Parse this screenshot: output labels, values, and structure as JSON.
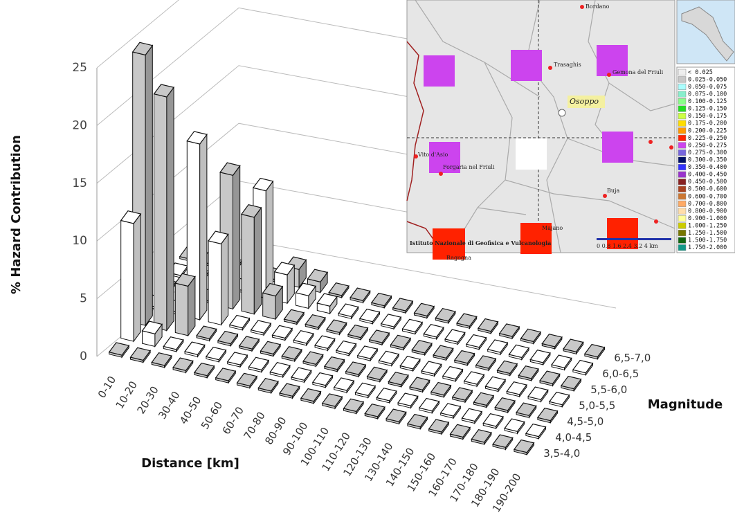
{
  "chart_data": {
    "type": "bar3d",
    "y_label": "% Hazard Contribution",
    "x_label": "Distance [km]",
    "z_label": "Magnitude",
    "categories": [
      "0-10",
      "10-20",
      "20-30",
      "30-40",
      "40-50",
      "50-60",
      "60-70",
      "70-80",
      "80-90",
      "90-100",
      "100-110",
      "110-120",
      "120-130",
      "130-140",
      "140-150",
      "150-160",
      "160-170",
      "170-180",
      "180-190",
      "190-200"
    ],
    "series": [
      {
        "name": "3,5-4,0",
        "color": "#c8c8c8",
        "values": [
          0,
          0,
          0,
          0,
          0,
          0,
          0,
          0,
          0,
          0,
          0,
          0,
          0,
          0,
          0,
          0,
          0,
          0,
          0,
          0
        ]
      },
      {
        "name": "4,0-4,5",
        "color": "#ffffff",
        "values": [
          11,
          1,
          0,
          0,
          0,
          0,
          0,
          0,
          0,
          0,
          0,
          0,
          0,
          0,
          0,
          0,
          0,
          0,
          0,
          0
        ]
      },
      {
        "name": "4,5-5,0",
        "color": "#c8c8c8",
        "values": [
          25.5,
          22,
          4.5,
          0,
          0,
          0,
          0,
          0,
          0,
          0,
          0,
          0,
          0,
          0,
          0,
          0,
          0,
          0,
          0,
          0
        ]
      },
      {
        "name": "5,0-5,5",
        "color": "#ffffff",
        "values": [
          0,
          0,
          16.5,
          7.5,
          0,
          0,
          0,
          0,
          0,
          0,
          0,
          0,
          0,
          0,
          0,
          0,
          0,
          0,
          0,
          0
        ]
      },
      {
        "name": "5,5-6,0",
        "color": "#c8c8c8",
        "values": [
          0,
          0,
          0,
          12.5,
          9,
          2,
          0,
          0,
          0,
          0,
          0,
          0,
          0,
          0,
          0,
          0,
          0,
          0,
          0,
          0
        ]
      },
      {
        "name": "6,0-6,5",
        "color": "#ffffff",
        "values": [
          0,
          0,
          0,
          0,
          10,
          2.5,
          1,
          0.5,
          0,
          0,
          0,
          0,
          0,
          0,
          0,
          0,
          0,
          0,
          0,
          0
        ]
      },
      {
        "name": "6,5-7,0",
        "color": "#c8c8c8",
        "values": [
          0,
          0,
          0,
          0,
          0,
          1.5,
          0.8,
          0,
          0,
          0,
          0,
          0,
          0,
          0,
          0,
          0,
          0,
          0,
          0,
          0
        ]
      }
    ],
    "ylim": [
      0,
      25
    ],
    "yticks": [
      0,
      5,
      10,
      15,
      20,
      25
    ],
    "grid": true
  },
  "map": {
    "places": [
      "Bordano",
      "Trasaghis",
      "Gemona del Friuli",
      "Osoppo",
      "Vito d'Asio",
      "Forgaria nel Friuli",
      "Buja",
      "Majano",
      "Ragogna"
    ],
    "credit": "Istituto Nazionale di Geofisica e Vulcanologia",
    "scale": "0 0.8 1.6 2.4 3.2 4 km",
    "legend": [
      {
        "label": "< 0.025",
        "color": "#eeeeee"
      },
      {
        "label": "0.025-0.050",
        "color": "#c8c8c8"
      },
      {
        "label": "0.050-0.075",
        "color": "#aaffff"
      },
      {
        "label": "0.075-0.100",
        "color": "#88eecc"
      },
      {
        "label": "0.100-0.125",
        "color": "#88ff88"
      },
      {
        "label": "0.125-0.150",
        "color": "#22dd22"
      },
      {
        "label": "0.150-0.175",
        "color": "#ccff44"
      },
      {
        "label": "0.175-0.200",
        "color": "#ffdd00"
      },
      {
        "label": "0.200-0.225",
        "color": "#ff9900"
      },
      {
        "label": "0.225-0.250",
        "color": "#ff2200"
      },
      {
        "label": "0.250-0.275",
        "color": "#cc44ee"
      },
      {
        "label": "0.275-0.300",
        "color": "#7766dd"
      },
      {
        "label": "0.300-0.350",
        "color": "#001166"
      },
      {
        "label": "0.350-0.400",
        "color": "#3333ff"
      },
      {
        "label": "0.400-0.450",
        "color": "#9933cc"
      },
      {
        "label": "0.450-0.500",
        "color": "#882222"
      },
      {
        "label": "0.500-0.600",
        "color": "#aa4422"
      },
      {
        "label": "0.600-0.700",
        "color": "#cc7733"
      },
      {
        "label": "0.700-0.800",
        "color": "#ffaa66"
      },
      {
        "label": "0.800-0.900",
        "color": "#ffddaa"
      },
      {
        "label": "0.900-1.000",
        "color": "#ffff99"
      },
      {
        "label": "1.000-1.250",
        "color": "#cccc00"
      },
      {
        "label": "1.250-1.500",
        "color": "#777700"
      },
      {
        "label": "1.500-1.750",
        "color": "#116611"
      },
      {
        "label": "1.750-2.000",
        "color": "#119988"
      }
    ]
  }
}
